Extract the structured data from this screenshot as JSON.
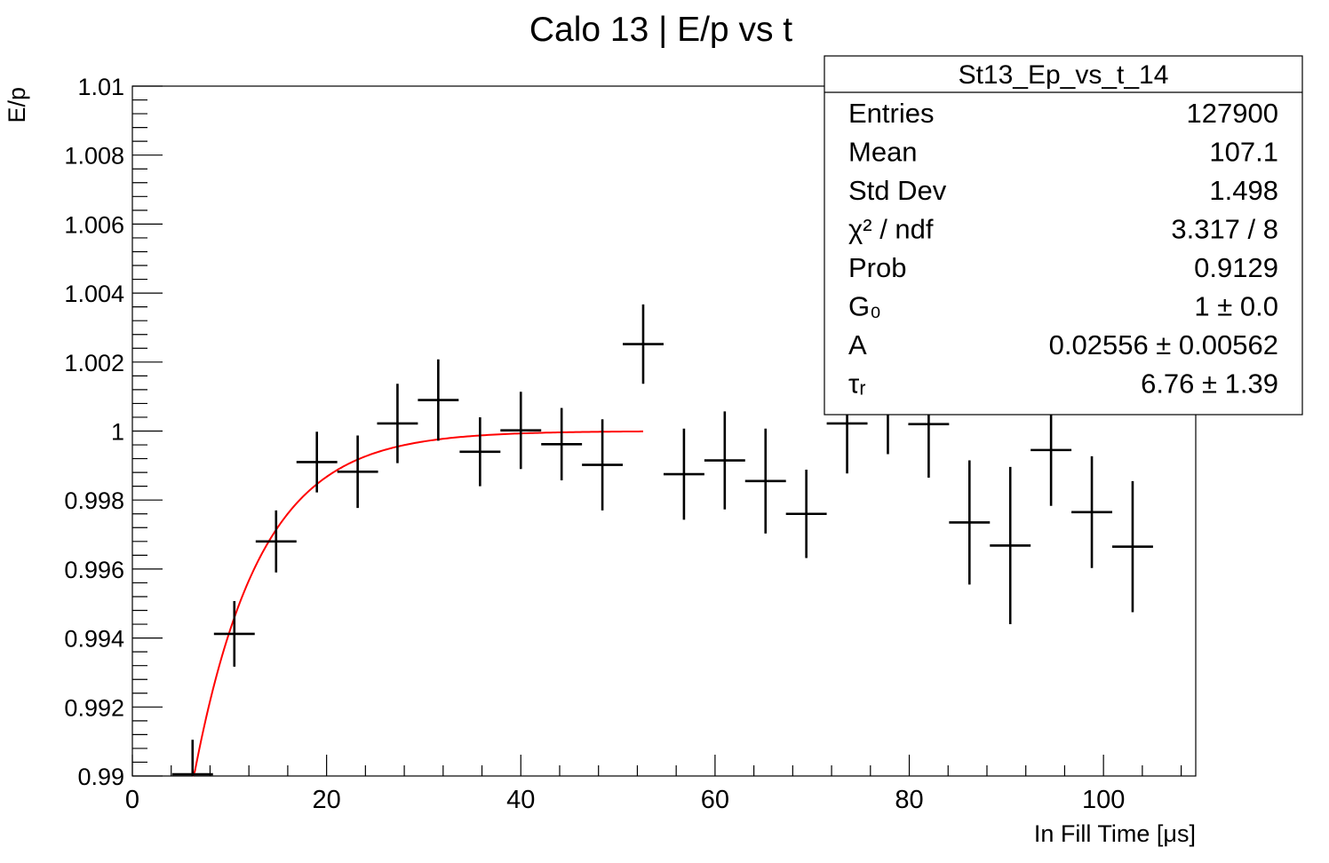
{
  "chart_data": {
    "type": "scatter",
    "title": "Calo 13 | E/p vs t",
    "xlabel": "In Fill Time [μs]",
    "ylabel": "E/p",
    "xlim": [
      0,
      109.5
    ],
    "ylim": [
      0.99,
      1.01
    ],
    "x_ticks": [
      "0",
      "20",
      "40",
      "60",
      "80",
      "100"
    ],
    "x_tick_values": [
      0,
      20,
      40,
      60,
      80,
      100
    ],
    "y_ticks": [
      "0.99",
      "0.992",
      "0.994",
      "0.996",
      "0.998",
      "1",
      "1.002",
      "1.004",
      "1.006",
      "1.008",
      "1.01"
    ],
    "y_tick_values": [
      0.99,
      0.992,
      0.994,
      0.996,
      0.998,
      1.0,
      1.002,
      1.004,
      1.006,
      1.008,
      1.01
    ],
    "grid": false,
    "series": [
      {
        "points": [
          {
            "x": 6.2,
            "y": 0.99005,
            "xerr": 2.1,
            "yerr": 0.001
          },
          {
            "x": 10.5,
            "y": 0.99412,
            "xerr": 2.1,
            "yerr": 0.00095
          },
          {
            "x": 14.8,
            "y": 0.9968,
            "xerr": 2.1,
            "yerr": 0.0009
          },
          {
            "x": 19.0,
            "y": 0.9991,
            "xerr": 2.1,
            "yerr": 0.00088
          },
          {
            "x": 23.2,
            "y": 0.99882,
            "xerr": 2.1,
            "yerr": 0.00105
          },
          {
            "x": 27.3,
            "y": 1.00022,
            "xerr": 2.1,
            "yerr": 0.00115
          },
          {
            "x": 31.5,
            "y": 1.0009,
            "xerr": 2.1,
            "yerr": 0.00118
          },
          {
            "x": 35.8,
            "y": 0.9994,
            "xerr": 2.1,
            "yerr": 0.001
          },
          {
            "x": 40.0,
            "y": 1.00002,
            "xerr": 2.1,
            "yerr": 0.00112
          },
          {
            "x": 44.2,
            "y": 0.99962,
            "xerr": 2.1,
            "yerr": 0.00105
          },
          {
            "x": 48.4,
            "y": 0.99902,
            "xerr": 2.1,
            "yerr": 0.00132
          },
          {
            "x": 52.6,
            "y": 1.00252,
            "xerr": 2.1,
            "yerr": 0.00115
          },
          {
            "x": 56.8,
            "y": 0.99875,
            "xerr": 2.1,
            "yerr": 0.00132
          },
          {
            "x": 61.0,
            "y": 0.99915,
            "xerr": 2.1,
            "yerr": 0.00142
          },
          {
            "x": 65.2,
            "y": 0.99855,
            "xerr": 2.1,
            "yerr": 0.00152
          },
          {
            "x": 69.4,
            "y": 0.9976,
            "xerr": 2.1,
            "yerr": 0.00128
          },
          {
            "x": 73.6,
            "y": 1.00022,
            "xerr": 2.1,
            "yerr": 0.00145
          },
          {
            "x": 77.8,
            "y": 1.00088,
            "xerr": 2.1,
            "yerr": 0.00155
          },
          {
            "x": 82.0,
            "y": 1.0002,
            "xerr": 2.1,
            "yerr": 0.00155
          },
          {
            "x": 86.2,
            "y": 0.99735,
            "xerr": 2.1,
            "yerr": 0.0018
          },
          {
            "x": 90.4,
            "y": 0.99668,
            "xerr": 2.1,
            "yerr": 0.00228
          },
          {
            "x": 94.6,
            "y": 0.99945,
            "xerr": 2.1,
            "yerr": 0.00162
          },
          {
            "x": 98.8,
            "y": 0.99765,
            "xerr": 2.1,
            "yerr": 0.00162
          },
          {
            "x": 103.0,
            "y": 0.99665,
            "xerr": 2.1,
            "yerr": 0.0019
          }
        ],
        "color": "#000000"
      }
    ],
    "fit": {
      "color": "#ff0000",
      "G0": 1.0,
      "A": 0.02556,
      "tau_r": 6.76,
      "x_range": [
        6.2,
        52.6
      ]
    },
    "stats_box": {
      "title": "St13_Ep_vs_t_14",
      "rows": [
        {
          "label": "Entries",
          "value": "127900"
        },
        {
          "label": "Mean",
          "value": "107.1"
        },
        {
          "label": "Std Dev",
          "value": "1.498"
        },
        {
          "label": "χ² / ndf",
          "value": "3.317 / 8"
        },
        {
          "label": "Prob",
          "value": "0.9129"
        },
        {
          "label": "G₀",
          "value": "1 ± 0.0"
        },
        {
          "label": "A",
          "value": "0.02556 ± 0.00562"
        },
        {
          "label": "τᵣ",
          "value": "6.76 ± 1.39"
        }
      ]
    }
  }
}
